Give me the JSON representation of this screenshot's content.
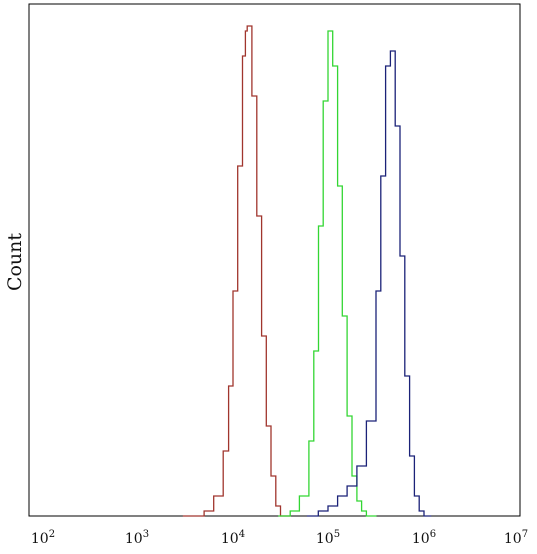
{
  "chart_data": {
    "type": "line",
    "title": "",
    "xlabel": "",
    "ylabel": "Count",
    "x_scale": "log10",
    "xlim": [
      100,
      10000000
    ],
    "ylim": [
      0,
      1
    ],
    "y_ticks": false,
    "grid": false,
    "legend": "none",
    "x_tick_labels": [
      {
        "base": "10",
        "exp": "2",
        "value": 100
      },
      {
        "base": "10",
        "exp": "3",
        "value": 1000
      },
      {
        "base": "10",
        "exp": "4",
        "value": 10000
      },
      {
        "base": "10",
        "exp": "5",
        "value": 100000
      },
      {
        "base": "10",
        "exp": "6",
        "value": 1000000
      },
      {
        "base": "10",
        "exp": "7",
        "value": 10000000
      }
    ],
    "series": [
      {
        "color": "#a0352d",
        "x": [
          3000,
          5000,
          6300,
          7900,
          9000,
          10000,
          11200,
          12600,
          13500,
          14100,
          15800,
          17800,
          20000,
          22400,
          25100,
          28200,
          31600,
          40000
        ],
        "y": [
          0,
          0.01,
          0.04,
          0.13,
          0.26,
          0.45,
          0.7,
          0.92,
          0.97,
          0.98,
          0.84,
          0.6,
          0.36,
          0.18,
          0.08,
          0.02,
          0,
          0
        ]
      },
      {
        "color": "#33d633",
        "x": [
          30000,
          40000,
          50000,
          63000,
          70800,
          79400,
          89100,
          100000,
          106000,
          112000,
          126000,
          141000,
          158000,
          178000,
          200000,
          224000,
          251000,
          320000
        ],
        "y": [
          0,
          0.01,
          0.04,
          0.15,
          0.33,
          0.58,
          0.83,
          0.97,
          0.97,
          0.9,
          0.66,
          0.4,
          0.2,
          0.08,
          0.03,
          0.01,
          0,
          0
        ]
      },
      {
        "color": "#1b2278",
        "x": [
          60000,
          79000,
          100000,
          126000,
          158000,
          200000,
          251000,
          316000,
          355000,
          398000,
          447000,
          501000,
          562000,
          631000,
          708000,
          794000,
          891000,
          1000000,
          1200000
        ],
        "y": [
          0,
          0.01,
          0.02,
          0.04,
          0.06,
          0.1,
          0.19,
          0.45,
          0.68,
          0.9,
          0.93,
          0.78,
          0.52,
          0.28,
          0.12,
          0.04,
          0.01,
          0,
          0
        ]
      }
    ]
  }
}
